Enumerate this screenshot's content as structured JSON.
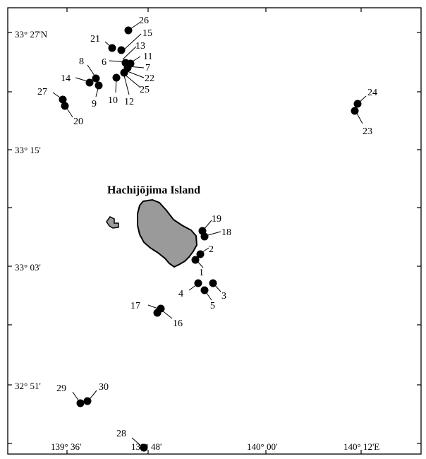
{
  "map": {
    "island_label": "Hachijōjima Island",
    "lat_labels": [
      "33° 27'N",
      "33° 15'",
      "33° 03'",
      "32° 51'"
    ],
    "lon_labels": [
      "139° 36'",
      "139° 48'",
      "140° 00'",
      "140° 12'E"
    ],
    "colors": {
      "island_fill": "#9a9a9a",
      "station": "#000000",
      "frame": "#000000"
    },
    "stations": [
      {
        "id": "1"
      },
      {
        "id": "2"
      },
      {
        "id": "3"
      },
      {
        "id": "4"
      },
      {
        "id": "5"
      },
      {
        "id": "6"
      },
      {
        "id": "7"
      },
      {
        "id": "8"
      },
      {
        "id": "9"
      },
      {
        "id": "10"
      },
      {
        "id": "11"
      },
      {
        "id": "12"
      },
      {
        "id": "13"
      },
      {
        "id": "14"
      },
      {
        "id": "15"
      },
      {
        "id": "16"
      },
      {
        "id": "17"
      },
      {
        "id": "18"
      },
      {
        "id": "19"
      },
      {
        "id": "20"
      },
      {
        "id": "21"
      },
      {
        "id": "22"
      },
      {
        "id": "23"
      },
      {
        "id": "24"
      },
      {
        "id": "25"
      },
      {
        "id": "26"
      },
      {
        "id": "27"
      },
      {
        "id": "28"
      },
      {
        "id": "29"
      },
      {
        "id": "30"
      }
    ]
  }
}
